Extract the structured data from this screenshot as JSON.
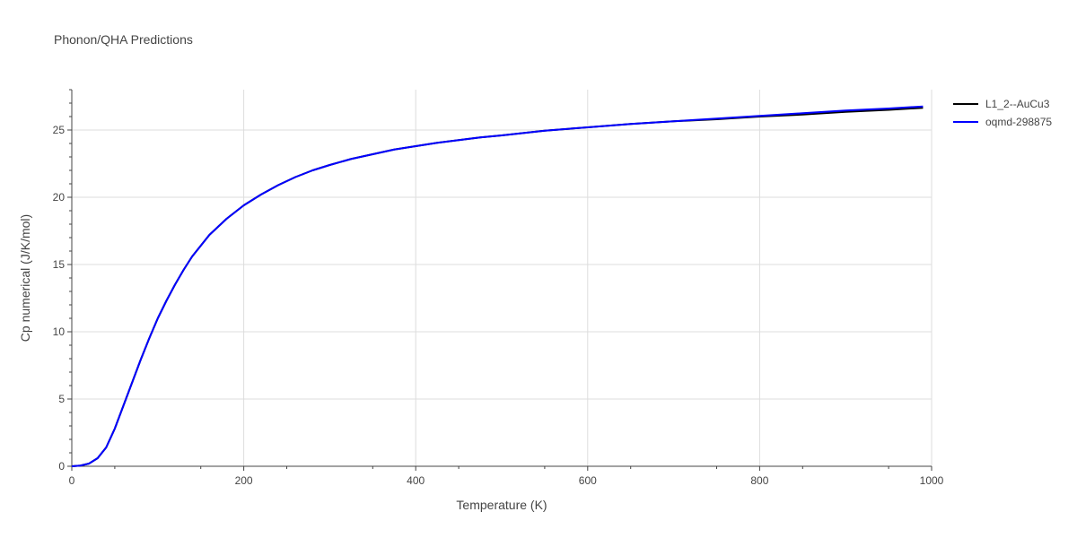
{
  "chart_data": {
    "type": "line",
    "title": "Phonon/QHA Predictions",
    "xlabel": "Temperature (K)",
    "ylabel": "Cp numerical (J/K/mol)",
    "xlim": [
      0,
      1000
    ],
    "ylim": [
      0,
      28
    ],
    "xticks": [
      0,
      200,
      400,
      600,
      800,
      1000
    ],
    "yticks": [
      0,
      5,
      10,
      15,
      20,
      25
    ],
    "grid": true,
    "legend_position": "top-right",
    "series": [
      {
        "name": "L1_2--AuCu3",
        "color": "#000000",
        "x": [
          0,
          10,
          20,
          30,
          40,
          50,
          60,
          70,
          80,
          90,
          100,
          110,
          120,
          130,
          140,
          150,
          160,
          170,
          180,
          190,
          200,
          220,
          240,
          260,
          280,
          300,
          325,
          350,
          375,
          400,
          425,
          450,
          475,
          500,
          550,
          600,
          650,
          700,
          750,
          800,
          850,
          900,
          950,
          990
        ],
        "y": [
          0,
          0.05,
          0.2,
          0.6,
          1.4,
          2.8,
          4.5,
          6.2,
          7.9,
          9.5,
          11.0,
          12.3,
          13.5,
          14.6,
          15.6,
          16.4,
          17.2,
          17.8,
          18.4,
          18.9,
          19.4,
          20.2,
          20.9,
          21.5,
          22.0,
          22.4,
          22.85,
          23.2,
          23.55,
          23.8,
          24.05,
          24.25,
          24.45,
          24.6,
          24.95,
          25.2,
          25.45,
          25.65,
          25.8,
          26.0,
          26.15,
          26.35,
          26.5,
          26.65
        ]
      },
      {
        "name": "oqmd-298875",
        "color": "#0000ff",
        "x": [
          0,
          10,
          20,
          30,
          40,
          50,
          60,
          70,
          80,
          90,
          100,
          110,
          120,
          130,
          140,
          150,
          160,
          170,
          180,
          190,
          200,
          220,
          240,
          260,
          280,
          300,
          325,
          350,
          375,
          400,
          425,
          450,
          475,
          500,
          550,
          600,
          650,
          700,
          750,
          800,
          850,
          900,
          950,
          990
        ],
        "y": [
          0,
          0.05,
          0.2,
          0.6,
          1.4,
          2.8,
          4.5,
          6.2,
          7.9,
          9.5,
          11.0,
          12.3,
          13.5,
          14.6,
          15.6,
          16.4,
          17.2,
          17.8,
          18.4,
          18.9,
          19.4,
          20.2,
          20.9,
          21.5,
          22.0,
          22.4,
          22.85,
          23.2,
          23.55,
          23.8,
          24.05,
          24.25,
          24.45,
          24.6,
          24.95,
          25.2,
          25.45,
          25.65,
          25.85,
          26.05,
          26.25,
          26.45,
          26.6,
          26.75
        ]
      }
    ]
  }
}
